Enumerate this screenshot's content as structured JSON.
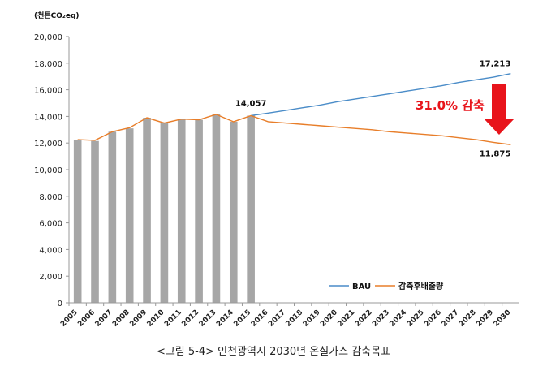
{
  "chart_data": {
    "type": "bar+line",
    "unit_label": "(천톤CO₂eq)",
    "categories": [
      "2005",
      "2006",
      "2007",
      "2008",
      "2009",
      "2010",
      "2011",
      "2012",
      "2013",
      "2014",
      "2015",
      "2016",
      "2017",
      "2018",
      "2019",
      "2020",
      "2021",
      "2022",
      "2023",
      "2024",
      "2025",
      "2026",
      "2027",
      "2028",
      "2029",
      "2030"
    ],
    "ylim": [
      0,
      20000
    ],
    "yticks": [
      "0",
      "2,000",
      "4,000",
      "6,000",
      "8,000",
      "10,000",
      "12,000",
      "14,000",
      "16,000",
      "18,000",
      "20,000"
    ],
    "bars": {
      "name": "",
      "color": "#a6a6a6",
      "x": [
        "2005",
        "2006",
        "2007",
        "2008",
        "2009",
        "2010",
        "2011",
        "2012",
        "2013",
        "2014",
        "2015"
      ],
      "values": [
        12200,
        12150,
        12850,
        13100,
        13900,
        13500,
        13800,
        13750,
        14150,
        13600,
        14057
      ]
    },
    "series": [
      {
        "name": "BAU",
        "color": "#4a8cc8",
        "x": [
          "2015",
          "2016",
          "2017",
          "2018",
          "2019",
          "2020",
          "2021",
          "2022",
          "2023",
          "2024",
          "2025",
          "2026",
          "2027",
          "2028",
          "2029",
          "2030"
        ],
        "values": [
          14057,
          14250,
          14450,
          14650,
          14850,
          15100,
          15300,
          15500,
          15700,
          15900,
          16100,
          16300,
          16550,
          16750,
          16950,
          17213
        ]
      },
      {
        "name": "감축후배출량",
        "color": "#e87e2a",
        "x": [
          "2005",
          "2006",
          "2007",
          "2008",
          "2009",
          "2010",
          "2011",
          "2012",
          "2013",
          "2014",
          "2015",
          "2016",
          "2017",
          "2018",
          "2019",
          "2020",
          "2021",
          "2022",
          "2023",
          "2024",
          "2025",
          "2026",
          "2027",
          "2028",
          "2029",
          "2030"
        ],
        "values": [
          12250,
          12200,
          12850,
          13150,
          13900,
          13500,
          13800,
          13750,
          14150,
          13600,
          14057,
          13600,
          13500,
          13400,
          13300,
          13200,
          13100,
          13000,
          12850,
          12750,
          12650,
          12550,
          12400,
          12250,
          12050,
          11875
        ]
      }
    ],
    "data_labels": [
      {
        "x": "2015",
        "text": "14,057"
      },
      {
        "x": "2030",
        "text": "17,213"
      },
      {
        "x": "2030",
        "text": "11,875"
      }
    ],
    "annotation": {
      "text": "31.0% 감축",
      "arrow_color": "#e8141b"
    },
    "legend_placement": "bottom-right",
    "grid": false
  },
  "caption": "<그림 5-4> 인천광역시 2030년 온실가스 감축목표"
}
